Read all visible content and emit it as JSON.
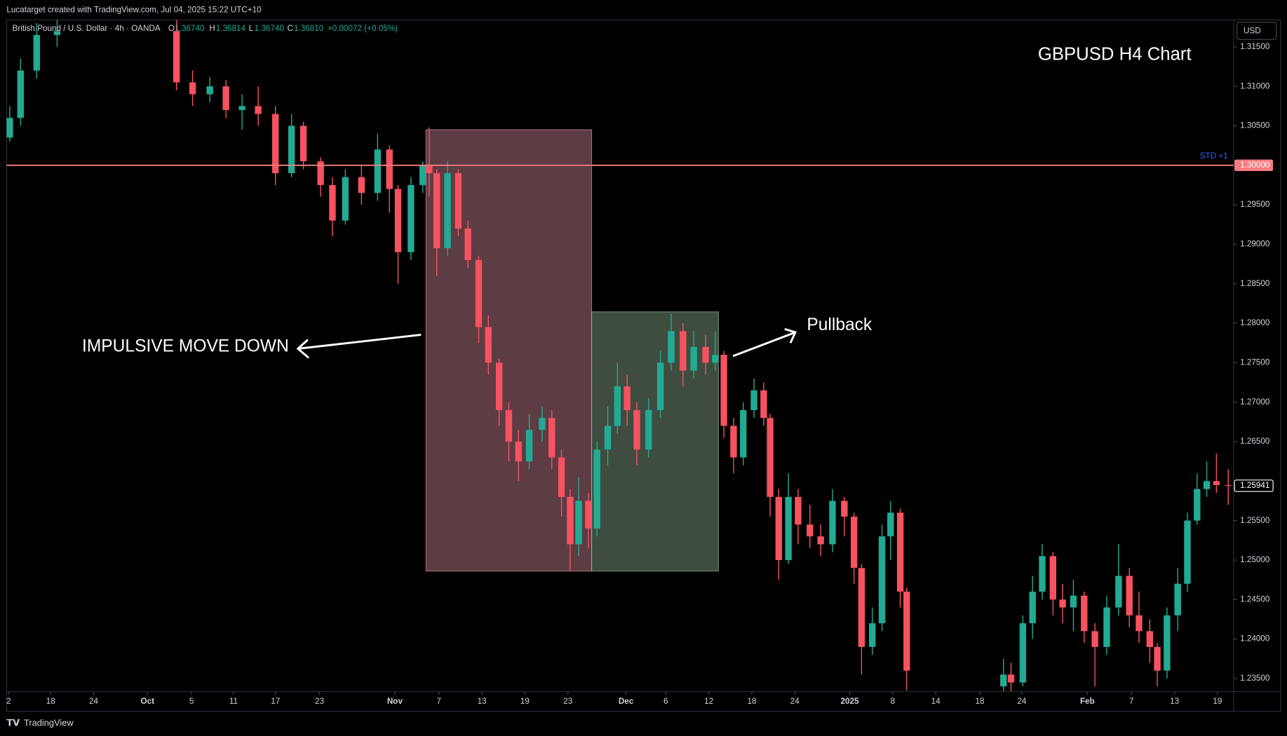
{
  "header": {
    "credit": "Lucatarget created with TradingView.com, Jul 04, 2025 15:22 UTC+10",
    "symbol": "British Pound / U.S. Dollar · 4h · OANDA",
    "ohlc": [
      {
        "key": "O",
        "value": "1.36740"
      },
      {
        "key": "H",
        "value": "1.36814"
      },
      {
        "key": "L",
        "value": "1.36740"
      },
      {
        "key": "C",
        "value": "1.36810"
      }
    ],
    "change": "+0.00072 (+0.05%)",
    "currency": "USD",
    "brand": "TradingView"
  },
  "chart_data": {
    "type": "candlestick",
    "title": "GBPUSD H4 Chart",
    "up_color": "#22ab94",
    "down_color": "#f7525f",
    "x": [
      0.3,
      1.3,
      2.8,
      4.7,
      15.8,
      17.3,
      18.9,
      20.4,
      21.9,
      23.4,
      25.0,
      26.5,
      27.6,
      29.2,
      30.3,
      31.5,
      33.0,
      34.5,
      35.6,
      36.4,
      37.6,
      38.7,
      39.3,
      40.0,
      41.0,
      42.0,
      42.9,
      43.9,
      44.8,
      45.8,
      46.7,
      47.6,
      48.6,
      49.8,
      50.7,
      51.6,
      52.4,
      53.2,
      54.1,
      54.9,
      55.9,
      56.8,
      57.7,
      58.6,
      59.7,
      60.8,
      61.8,
      62.9,
      63.9,
      65.0,
      65.9,
      66.7,
      67.6,
      68.5,
      69.5,
      70.4,
      71.0,
      71.8,
      72.7,
      73.6,
      74.7,
      75.7,
      76.8,
      77.9,
      78.8,
      79.5,
      80.5,
      81.4,
      82.2,
      83.1,
      83.7,
      92.7,
      93.4,
      94.5,
      95.4,
      96.3,
      97.3,
      98.2,
      99.2,
      100.2,
      101.2,
      102.3,
      103.4,
      104.4,
      105.3,
      106.3,
      107.0,
      107.9,
      108.9,
      109.8,
      110.7,
      111.6,
      112.5,
      113.6
    ],
    "open": [
      1.3035,
      1.306,
      1.312,
      1.3165,
      1.317,
      1.3105,
      1.309,
      1.31,
      1.307,
      1.3075,
      1.3065,
      1.299,
      1.305,
      1.3005,
      1.2975,
      1.293,
      1.2985,
      1.2965,
      1.302,
      1.297,
      1.289,
      1.2975,
      1.3,
      1.299,
      1.2895,
      1.299,
      1.292,
      1.288,
      1.2795,
      1.275,
      1.269,
      1.265,
      1.2625,
      1.2665,
      1.268,
      1.263,
      1.258,
      1.252,
      1.2575,
      1.254,
      1.264,
      1.267,
      1.272,
      1.269,
      1.264,
      1.269,
      1.275,
      1.279,
      1.274,
      1.277,
      1.275,
      1.276,
      1.267,
      1.263,
      1.269,
      1.2715,
      1.268,
      1.258,
      1.25,
      1.258,
      1.2545,
      1.253,
      1.252,
      1.2575,
      1.2555,
      1.249,
      1.239,
      1.242,
      1.253,
      1.256,
      1.246,
      1.234,
      1.2355,
      1.2345,
      1.242,
      1.246,
      1.2505,
      1.245,
      1.244,
      1.2455,
      1.241,
      1.239,
      1.244,
      1.248,
      1.243,
      1.241,
      1.239,
      1.236,
      1.243,
      1.247,
      1.255,
      1.259,
      1.26,
      1.2595
    ],
    "high": [
      1.3075,
      1.3135,
      1.318,
      1.3184,
      1.3184,
      1.312,
      1.3112,
      1.3108,
      1.309,
      1.31,
      1.3075,
      1.3065,
      1.3055,
      1.301,
      1.2985,
      1.2995,
      1.3,
      1.304,
      1.3025,
      1.2975,
      1.2985,
      1.3005,
      1.3048,
      1.2995,
      1.3005,
      1.2995,
      1.293,
      1.2885,
      1.281,
      1.2755,
      1.27,
      1.2665,
      1.2685,
      1.2695,
      1.269,
      1.264,
      1.259,
      1.2605,
      1.2585,
      1.265,
      1.2695,
      1.275,
      1.2735,
      1.27,
      1.2705,
      1.2765,
      1.2812,
      1.28,
      1.279,
      1.2785,
      1.279,
      1.2765,
      1.268,
      1.27,
      1.273,
      1.2725,
      1.2685,
      1.259,
      1.261,
      1.259,
      1.257,
      1.2545,
      1.259,
      1.258,
      1.256,
      1.2495,
      1.244,
      1.2545,
      1.2575,
      1.2565,
      1.2465,
      1.2375,
      1.237,
      1.243,
      1.248,
      1.252,
      1.251,
      1.247,
      1.2475,
      1.246,
      1.242,
      1.2455,
      1.252,
      1.249,
      1.246,
      1.2425,
      1.2395,
      1.244,
      1.249,
      1.256,
      1.261,
      1.2625,
      1.2635,
      1.2615
    ],
    "low": [
      1.303,
      1.305,
      1.311,
      1.315,
      1.3095,
      1.3075,
      1.308,
      1.306,
      1.3045,
      1.305,
      1.2975,
      1.2985,
      1.2995,
      1.296,
      1.291,
      1.2925,
      1.295,
      1.2955,
      1.294,
      1.285,
      1.288,
      1.2965,
      1.296,
      1.286,
      1.2885,
      1.291,
      1.287,
      1.2775,
      1.2735,
      1.267,
      1.2625,
      1.26,
      1.2615,
      1.265,
      1.2615,
      1.2555,
      1.2487,
      1.2505,
      1.2515,
      1.253,
      1.262,
      1.266,
      1.267,
      1.262,
      1.263,
      1.268,
      1.274,
      1.272,
      1.273,
      1.2735,
      1.274,
      1.2655,
      1.261,
      1.262,
      1.268,
      1.267,
      1.2555,
      1.2475,
      1.2495,
      1.252,
      1.2515,
      1.2505,
      1.251,
      1.253,
      1.247,
      1.2355,
      1.238,
      1.241,
      1.25,
      1.244,
      1.2335,
      1.2334,
      1.2334,
      1.234,
      1.24,
      1.245,
      1.243,
      1.242,
      1.241,
      1.2395,
      1.234,
      1.238,
      1.243,
      1.2415,
      1.2395,
      1.237,
      1.234,
      1.235,
      1.241,
      1.246,
      1.2545,
      1.258,
      1.2585,
      1.257
    ],
    "close": [
      1.306,
      1.312,
      1.3165,
      1.317,
      1.3105,
      1.309,
      1.31,
      1.307,
      1.3075,
      1.3065,
      1.299,
      1.305,
      1.3005,
      1.2975,
      1.293,
      1.2985,
      1.2965,
      1.302,
      1.297,
      1.289,
      1.2975,
      1.3,
      1.299,
      1.2895,
      1.299,
      1.292,
      1.288,
      1.2795,
      1.275,
      1.269,
      1.265,
      1.2625,
      1.2665,
      1.268,
      1.263,
      1.258,
      1.252,
      1.2575,
      1.254,
      1.264,
      1.267,
      1.272,
      1.269,
      1.264,
      1.269,
      1.275,
      1.279,
      1.274,
      1.277,
      1.275,
      1.276,
      1.267,
      1.263,
      1.269,
      1.2715,
      1.268,
      1.258,
      1.25,
      1.258,
      1.2545,
      1.253,
      1.252,
      1.2575,
      1.2555,
      1.249,
      1.239,
      1.242,
      1.253,
      1.256,
      1.246,
      1.236,
      1.2355,
      1.2345,
      1.242,
      1.246,
      1.2505,
      1.245,
      1.244,
      1.2455,
      1.241,
      1.239,
      1.244,
      1.248,
      1.243,
      1.241,
      1.239,
      1.236,
      1.243,
      1.247,
      1.255,
      1.259,
      1.26,
      1.2595,
      1.25941
    ],
    "xlim": [
      0,
      114.1
    ],
    "ylim": [
      1.23334,
      1.31843
    ],
    "xticks": [
      {
        "value": 0.2,
        "label": "2"
      },
      {
        "value": 4.1,
        "label": "18"
      },
      {
        "value": 8.1,
        "label": "24"
      },
      {
        "value": 13.1,
        "label": "Oct"
      },
      {
        "value": 17.2,
        "label": "5"
      },
      {
        "value": 21.1,
        "label": "11"
      },
      {
        "value": 25.0,
        "label": "17"
      },
      {
        "value": 29.1,
        "label": "23"
      },
      {
        "value": 36.1,
        "label": "Nov"
      },
      {
        "value": 40.2,
        "label": "7"
      },
      {
        "value": 44.2,
        "label": "13"
      },
      {
        "value": 48.2,
        "label": "19"
      },
      {
        "value": 52.2,
        "label": "23"
      },
      {
        "value": 57.6,
        "label": "Dec"
      },
      {
        "value": 61.3,
        "label": "6"
      },
      {
        "value": 65.3,
        "label": "12"
      },
      {
        "value": 69.3,
        "label": "18"
      },
      {
        "value": 73.3,
        "label": "24"
      },
      {
        "value": 78.4,
        "label": "2025"
      },
      {
        "value": 82.4,
        "label": "8"
      },
      {
        "value": 86.4,
        "label": "14"
      },
      {
        "value": 90.5,
        "label": "18"
      },
      {
        "value": 94.4,
        "label": "24"
      },
      {
        "value": 100.5,
        "label": "Feb"
      },
      {
        "value": 104.6,
        "label": "7"
      },
      {
        "value": 108.6,
        "label": "13"
      },
      {
        "value": 112.6,
        "label": "19"
      }
    ],
    "yticks": [
      {
        "value": 1.315,
        "label": "1.31500"
      },
      {
        "value": 1.31,
        "label": "1.31000"
      },
      {
        "value": 1.305,
        "label": "1.30500"
      },
      {
        "value": 1.295,
        "label": "1.29500"
      },
      {
        "value": 1.29,
        "label": "1.29000"
      },
      {
        "value": 1.285,
        "label": "1.28500"
      },
      {
        "value": 1.28,
        "label": "1.28000"
      },
      {
        "value": 1.275,
        "label": "1.27500"
      },
      {
        "value": 1.27,
        "label": "1.27000"
      },
      {
        "value": 1.265,
        "label": "1.26500"
      },
      {
        "value": 1.255,
        "label": "1.25500"
      },
      {
        "value": 1.25,
        "label": "1.25000"
      },
      {
        "value": 1.245,
        "label": "1.24500"
      },
      {
        "value": 1.24,
        "label": "1.24000"
      },
      {
        "value": 1.235,
        "label": "1.23500"
      }
    ],
    "hline": {
      "value": 1.3,
      "label": "1.30000",
      "name": "STD +1",
      "color": "#f77c80",
      "name_color": "#2962ff"
    },
    "last_price": {
      "value": 1.25941,
      "label": "1.25941"
    },
    "zones": [
      {
        "x": [
          39.0,
          54.4
        ],
        "y": [
          1.30451,
          1.24861
        ],
        "color": "#e896aa"
      },
      {
        "x": [
          54.4,
          66.2
        ],
        "y": [
          1.28144,
          1.24861
        ],
        "color": "#9cc0a0"
      }
    ],
    "annotations": [
      "IMPULSIVE MOVE DOWN",
      "Pullback"
    ]
  }
}
